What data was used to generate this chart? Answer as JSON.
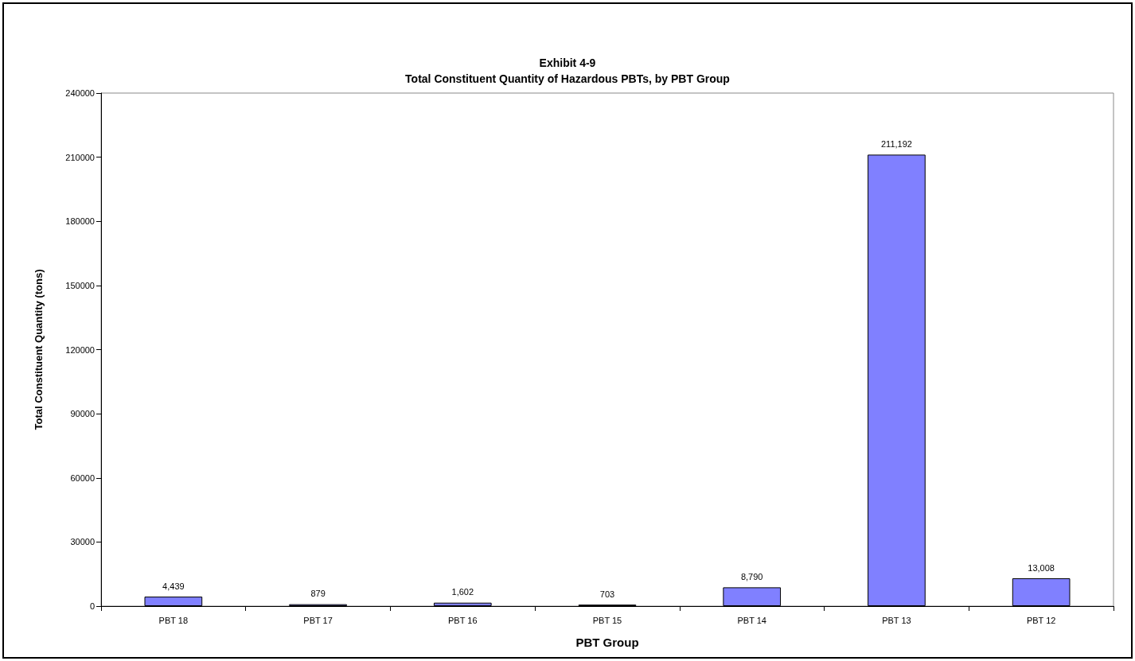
{
  "chart_data": {
    "type": "bar",
    "title": "Exhibit 4-9",
    "subtitle": "Total Constituent Quantity of Hazardous PBTs, by PBT Group",
    "xlabel": "PBT Group",
    "ylabel": "Total Constituent Quantity (tons)",
    "categories": [
      "PBT 18",
      "PBT 17",
      "PBT 16",
      "PBT 15",
      "PBT 14",
      "PBT 13",
      "PBT 12"
    ],
    "values": [
      4439,
      879,
      1602,
      703,
      8790,
      211192,
      13008
    ],
    "value_labels": [
      "4,439",
      "879",
      "1,602",
      "703",
      "8,790",
      "211,192",
      "13,008"
    ],
    "color": "#8080ff",
    "ylim": [
      0,
      240000
    ],
    "yticks": [
      0,
      30000,
      60000,
      90000,
      120000,
      150000,
      180000,
      210000,
      240000
    ],
    "grid": false
  }
}
